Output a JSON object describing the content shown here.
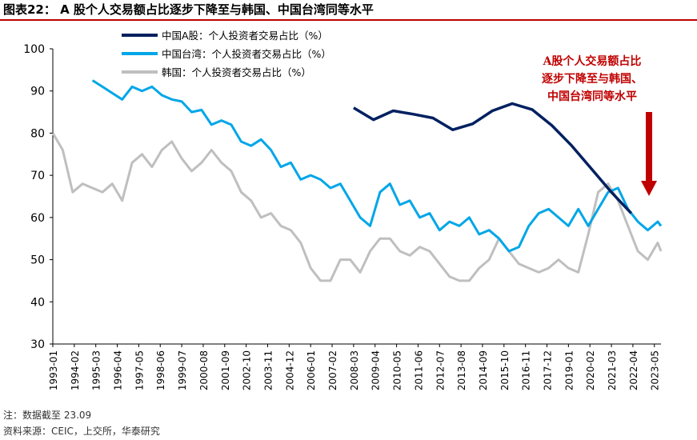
{
  "figure_title": "图表22：  A 股个人交易额占比逐步下降至与韩国、中国台湾同等水平",
  "annotation_lines": [
    "A股个人交易额占比",
    "逐步下降至与韩国、",
    "中国台湾同等水平"
  ],
  "note": "注：数据截至 23.09",
  "source": "资料来源：CEIC，上交所，华泰研究",
  "colors": {
    "china_a": "#002060",
    "taiwan": "#00a6e8",
    "korea": "#bfbfbf",
    "arrow": "#c00000"
  },
  "chart_data": {
    "type": "line",
    "ylim": [
      30,
      100
    ],
    "yticks": [
      30,
      40,
      50,
      60,
      70,
      80,
      90,
      100
    ],
    "xtick_labels": [
      "1993-01",
      "1994-02",
      "1995-03",
      "1996-04",
      "1997-05",
      "1998-06",
      "1999-07",
      "2000-08",
      "2001-09",
      "2002-10",
      "2003-11",
      "2004-12",
      "2006-01",
      "2007-02",
      "2008-03",
      "2009-04",
      "2010-05",
      "2011-06",
      "2012-07",
      "2013-08",
      "2014-09",
      "2015-10",
      "2016-11",
      "2017-12",
      "2019-01",
      "2020-02",
      "2021-03",
      "2022-04",
      "2023-05"
    ],
    "legend_position": "top",
    "series": [
      {
        "name": "中国A股：个人投资者交易占比（%）",
        "x": [
          "2008-03",
          "2009-03",
          "2010-03",
          "2011-03",
          "2012-03",
          "2013-03",
          "2014-03",
          "2015-03",
          "2016-03",
          "2017-03",
          "2018-03",
          "2019-03",
          "2020-03",
          "2021-03",
          "2022-03"
        ],
        "values": [
          86,
          83.2,
          85.3,
          84.5,
          83.6,
          80.8,
          82.2,
          85.3,
          87,
          85.6,
          81.8,
          77,
          71.5,
          66,
          61
        ]
      },
      {
        "name": "中国台湾：个人投资者交易占比（%）",
        "x": [
          "1995-01",
          "1995-07",
          "1996-01",
          "1996-07",
          "1997-01",
          "1997-07",
          "1998-01",
          "1998-07",
          "1999-01",
          "1999-07",
          "2000-01",
          "2000-07",
          "2001-01",
          "2001-07",
          "2002-01",
          "2002-07",
          "2003-01",
          "2003-07",
          "2004-01",
          "2004-07",
          "2005-01",
          "2005-07",
          "2006-01",
          "2006-07",
          "2007-01",
          "2007-07",
          "2008-01",
          "2008-07",
          "2009-01",
          "2009-07",
          "2010-01",
          "2010-07",
          "2011-01",
          "2011-07",
          "2012-01",
          "2012-07",
          "2013-01",
          "2013-07",
          "2014-01",
          "2014-07",
          "2015-01",
          "2015-07",
          "2016-01",
          "2016-07",
          "2017-01",
          "2017-07",
          "2018-01",
          "2018-07",
          "2019-01",
          "2019-07",
          "2020-01",
          "2020-07",
          "2021-01",
          "2021-07",
          "2022-01",
          "2022-07",
          "2023-01",
          "2023-07",
          "2023-09"
        ],
        "values": [
          92.5,
          91,
          89.5,
          88,
          91,
          90,
          91,
          89,
          88,
          87.5,
          85,
          85.5,
          82,
          83,
          82,
          78,
          77,
          78.5,
          76,
          72,
          73,
          69,
          70,
          69,
          67,
          68,
          64,
          60,
          58,
          66,
          68,
          63,
          64,
          60,
          61,
          57,
          59,
          58,
          60,
          56,
          57,
          55,
          52,
          53,
          58,
          61,
          62,
          60,
          58,
          62,
          58,
          62,
          66,
          67,
          62,
          59,
          57,
          59,
          58
        ]
      },
      {
        "name": "韩国：个人投资者交易占比（%）",
        "x": [
          "1993-01",
          "1993-07",
          "1994-01",
          "1994-07",
          "1995-01",
          "1995-07",
          "1996-01",
          "1996-07",
          "1997-01",
          "1997-07",
          "1998-01",
          "1998-07",
          "1999-01",
          "1999-07",
          "2000-01",
          "2000-07",
          "2001-01",
          "2001-07",
          "2002-01",
          "2002-07",
          "2003-01",
          "2003-07",
          "2004-01",
          "2004-07",
          "2005-01",
          "2005-07",
          "2006-01",
          "2006-07",
          "2007-01",
          "2007-07",
          "2008-01",
          "2008-07",
          "2009-01",
          "2009-07",
          "2010-01",
          "2010-07",
          "2011-01",
          "2011-07",
          "2012-01",
          "2012-07",
          "2013-01",
          "2013-07",
          "2014-01",
          "2014-07",
          "2015-01",
          "2015-07",
          "2016-01",
          "2016-07",
          "2017-01",
          "2017-07",
          "2018-01",
          "2018-07",
          "2019-01",
          "2019-07",
          "2020-01",
          "2020-07",
          "2021-01",
          "2021-07",
          "2022-01",
          "2022-07",
          "2023-01",
          "2023-07",
          "2023-09"
        ],
        "values": [
          80,
          76,
          66,
          68,
          67,
          66,
          68,
          64,
          73,
          75,
          72,
          76,
          78,
          74,
          71,
          73,
          76,
          73,
          71,
          66,
          64,
          60,
          61,
          58,
          57,
          54,
          48,
          45,
          45,
          50,
          50,
          47,
          52,
          55,
          55,
          52,
          51,
          53,
          52,
          49,
          46,
          45,
          45,
          48,
          50,
          55,
          52,
          49,
          48,
          47,
          48,
          50,
          48,
          47,
          56,
          66,
          68,
          64,
          58,
          52,
          50,
          54,
          52
        ]
      }
    ]
  }
}
